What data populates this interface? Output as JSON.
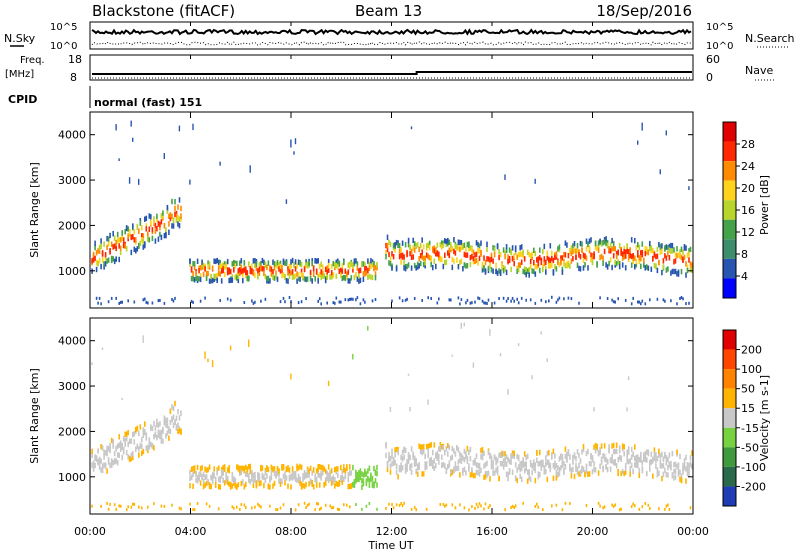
{
  "header": {
    "station": "Blackstone (fitACF)",
    "beam": "Beam 13",
    "date": "18/Sep/2016"
  },
  "noise_panel": {
    "left_label": "N.Sky",
    "right_label": "N.Search",
    "left_ticks": [
      "10^5",
      "10^0"
    ],
    "right_ticks": [
      "10^5",
      "10^0"
    ]
  },
  "freq_panel": {
    "left_label_1": "Freq.",
    "left_label_2": "[MHz]",
    "left_ticks": [
      "18",
      "8"
    ],
    "right_label": "Nave",
    "right_ticks": [
      "60",
      "0"
    ]
  },
  "cpid": {
    "label": "CPID",
    "value": "normal (fast) 151"
  },
  "chart_data": [
    {
      "type": "heatmap",
      "name": "power",
      "ylabel": "Slant Range [km]",
      "yticks": [
        "4000",
        "3000",
        "2000",
        "1000"
      ],
      "ylim": [
        180,
        4500
      ],
      "colorbar_label": "Power [dB]",
      "colorbar_ticks": [
        "28",
        "24",
        "20",
        "16",
        "12",
        "8",
        "4"
      ],
      "colorbar_colors": [
        "#0000ff",
        "#2855b0",
        "#3d8c6c",
        "#44a24a",
        "#b7d52a",
        "#ffd21e",
        "#ff8c00",
        "#ff2800",
        "#e10000"
      ]
    },
    {
      "type": "heatmap",
      "name": "velocity",
      "ylabel": "Slant Range [km]",
      "yticks": [
        "4000",
        "3000",
        "2000",
        "1000"
      ],
      "ylim": [
        180,
        4500
      ],
      "colorbar_label": "Velocity [m s-1]",
      "colorbar_ticks": [
        "200",
        "100",
        "50",
        "15",
        "-15",
        "-50",
        "-100",
        "-200"
      ],
      "colorbar_colors": [
        "#1e3cb4",
        "#2a6a4a",
        "#3e9a3c",
        "#76d240",
        "#c8c8c8",
        "#ffb400",
        "#ff8200",
        "#ff4600",
        "#e10000"
      ]
    }
  ],
  "time_axis": {
    "xlabel": "Time UT",
    "ticks": [
      "00:00",
      "04:00",
      "08:00",
      "12:00",
      "16:00",
      "20:00",
      "00:00"
    ]
  }
}
